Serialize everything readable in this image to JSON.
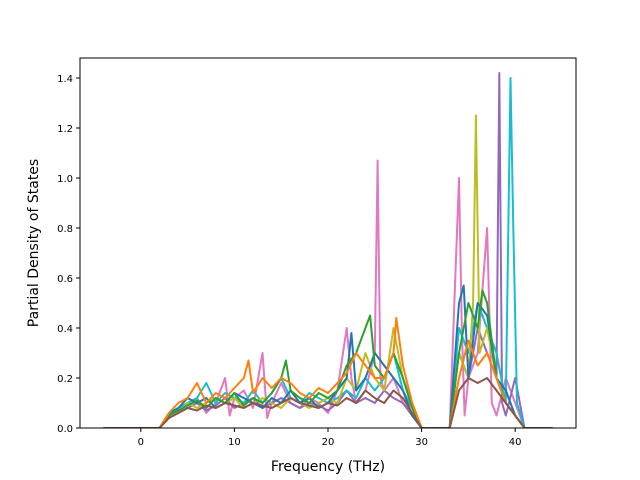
{
  "chart_data": {
    "type": "line",
    "title": "",
    "xlabel": "Frequency (THz)",
    "ylabel": "Partial Density of States",
    "xlim": [
      -6.5,
      46.5
    ],
    "ylim": [
      0,
      1.48
    ],
    "xticks": [
      0,
      10,
      20,
      30,
      40
    ],
    "yticks": [
      0.0,
      0.2,
      0.4,
      0.6,
      0.8,
      1.0,
      1.2,
      1.4
    ],
    "xtick_labels": [
      "0",
      "10",
      "20",
      "30",
      "40"
    ],
    "ytick_labels": [
      "0.0",
      "0.2",
      "0.4",
      "0.6",
      "0.8",
      "1.0",
      "1.2",
      "1.4"
    ],
    "grid": false,
    "legend": "none",
    "series": [
      {
        "color": "#e377c2",
        "x": [
          -4,
          2,
          3,
          4,
          5,
          6,
          7,
          8,
          9,
          9.5,
          10,
          11,
          12,
          13,
          13.5,
          14,
          15,
          16,
          17,
          18,
          19,
          20,
          21,
          22,
          22.5,
          23,
          24,
          25,
          25.3,
          25.6,
          26,
          27,
          28,
          29,
          30,
          33,
          34,
          34.3,
          34.6,
          35,
          36,
          37,
          37.5,
          38,
          39,
          40,
          41,
          44
        ],
        "y": [
          0,
          0,
          0.05,
          0.08,
          0.1,
          0.12,
          0.06,
          0.1,
          0.2,
          0.05,
          0.12,
          0.15,
          0.08,
          0.3,
          0.04,
          0.1,
          0.18,
          0.1,
          0.08,
          0.12,
          0.1,
          0.06,
          0.15,
          0.4,
          0.2,
          0.1,
          0.15,
          0.3,
          1.07,
          0.2,
          0.15,
          0.2,
          0.1,
          0.05,
          0,
          0,
          1.0,
          0.4,
          0.05,
          0.2,
          0.3,
          0.8,
          0.1,
          0.05,
          0.2,
          0.1,
          0,
          0
        ]
      },
      {
        "color": "#9467bd",
        "x": [
          -4,
          2,
          3,
          4,
          5,
          6,
          7,
          8,
          9,
          10,
          11,
          12,
          13,
          14,
          15,
          16,
          17,
          18,
          19,
          20,
          21,
          22,
          23,
          24,
          25,
          26,
          27,
          28,
          29,
          30,
          33,
          34,
          35,
          36,
          37,
          38,
          38.3,
          38.6,
          39,
          40,
          41,
          44
        ],
        "y": [
          0,
          0,
          0.04,
          0.06,
          0.08,
          0.1,
          0.07,
          0.09,
          0.12,
          0.08,
          0.1,
          0.12,
          0.08,
          0.1,
          0.12,
          0.1,
          0.08,
          0.1,
          0.09,
          0.07,
          0.1,
          0.15,
          0.1,
          0.12,
          0.1,
          0.15,
          0.12,
          0.1,
          0.05,
          0,
          0,
          0.3,
          0.2,
          0.4,
          0.3,
          0.2,
          1.42,
          0.1,
          0.05,
          0.2,
          0,
          0
        ]
      },
      {
        "color": "#17becf",
        "x": [
          -4,
          2,
          3,
          4,
          5,
          6,
          7,
          8,
          9,
          10,
          11,
          12,
          13,
          14,
          15,
          16,
          17,
          18,
          19,
          20,
          21,
          22,
          23,
          24,
          25,
          26,
          27,
          28,
          29,
          30,
          33,
          34,
          35,
          36,
          37,
          38,
          39,
          39.5,
          39.8,
          40.2,
          41,
          44
        ],
        "y": [
          0,
          0,
          0.05,
          0.08,
          0.1,
          0.12,
          0.18,
          0.1,
          0.14,
          0.12,
          0.1,
          0.15,
          0.1,
          0.14,
          0.2,
          0.12,
          0.1,
          0.14,
          0.12,
          0.1,
          0.12,
          0.15,
          0.12,
          0.2,
          0.15,
          0.2,
          0.3,
          0.15,
          0.08,
          0,
          0,
          0.4,
          0.3,
          0.5,
          0.4,
          0.3,
          0.1,
          1.4,
          0.8,
          0.1,
          0,
          0
        ]
      },
      {
        "color": "#bcbd22",
        "x": [
          -4,
          2,
          3,
          4,
          5,
          6,
          7,
          8,
          9,
          10,
          11,
          12,
          13,
          14,
          15,
          16,
          17,
          18,
          19,
          20,
          21,
          22,
          23,
          24,
          25,
          26,
          27,
          28,
          29,
          30,
          33,
          34,
          35,
          35.5,
          35.8,
          36.2,
          37,
          38,
          39,
          40,
          41,
          44
        ],
        "y": [
          0,
          0,
          0.04,
          0.06,
          0.1,
          0.08,
          0.1,
          0.12,
          0.1,
          0.12,
          0.08,
          0.1,
          0.12,
          0.1,
          0.08,
          0.12,
          0.1,
          0.08,
          0.1,
          0.12,
          0.1,
          0.2,
          0.15,
          0.3,
          0.2,
          0.15,
          0.4,
          0.2,
          0.1,
          0,
          0,
          0.3,
          0.2,
          0.5,
          1.25,
          0.3,
          0.4,
          0.2,
          0.1,
          0.05,
          0,
          0
        ]
      },
      {
        "color": "#1f77b4",
        "x": [
          -4,
          2,
          3,
          4,
          5,
          6,
          7,
          8,
          9,
          10,
          11,
          12,
          13,
          14,
          15,
          16,
          17,
          18,
          19,
          20,
          21,
          22,
          22.5,
          23,
          24,
          25,
          26,
          27,
          28,
          29,
          30,
          33,
          34,
          34.5,
          35,
          36,
          37,
          38,
          39,
          40,
          41,
          44
        ],
        "y": [
          0,
          0,
          0.06,
          0.08,
          0.12,
          0.1,
          0.12,
          0.08,
          0.1,
          0.14,
          0.12,
          0.1,
          0.08,
          0.12,
          0.1,
          0.15,
          0.1,
          0.12,
          0.08,
          0.1,
          0.15,
          0.2,
          0.38,
          0.15,
          0.2,
          0.3,
          0.25,
          0.2,
          0.15,
          0.05,
          0,
          0,
          0.5,
          0.57,
          0.2,
          0.5,
          0.45,
          0.2,
          0.15,
          0.05,
          0,
          0
        ]
      },
      {
        "color": "#2ca02c",
        "x": [
          -4,
          2,
          3,
          4,
          5,
          6,
          7,
          8,
          9,
          10,
          11,
          12,
          13,
          14,
          15,
          15.5,
          16,
          17,
          18,
          19,
          20,
          21,
          22,
          23,
          24,
          24.5,
          25,
          26,
          27,
          28,
          29,
          30,
          33,
          34,
          35,
          36,
          36.5,
          37,
          38,
          39,
          40,
          41,
          44
        ],
        "y": [
          0,
          0,
          0.05,
          0.07,
          0.09,
          0.11,
          0.08,
          0.12,
          0.1,
          0.14,
          0.09,
          0.12,
          0.1,
          0.14,
          0.2,
          0.27,
          0.15,
          0.12,
          0.1,
          0.14,
          0.12,
          0.15,
          0.25,
          0.3,
          0.4,
          0.45,
          0.25,
          0.2,
          0.3,
          0.2,
          0.08,
          0,
          0,
          0.3,
          0.5,
          0.4,
          0.55,
          0.5,
          0.2,
          0.1,
          0.05,
          0,
          0
        ]
      },
      {
        "color": "#ff7f0e",
        "x": [
          -4,
          2,
          3,
          4,
          5,
          6,
          7,
          8,
          9,
          10,
          11,
          11.5,
          12,
          13,
          14,
          15,
          16,
          17,
          18,
          19,
          20,
          21,
          22,
          23,
          24,
          25,
          26,
          27,
          27.3,
          28,
          29,
          30,
          33,
          34,
          35,
          36,
          37,
          38,
          39,
          40,
          41,
          44
        ],
        "y": [
          0,
          0,
          0.06,
          0.1,
          0.12,
          0.18,
          0.1,
          0.14,
          0.12,
          0.16,
          0.2,
          0.27,
          0.14,
          0.2,
          0.16,
          0.2,
          0.18,
          0.14,
          0.12,
          0.16,
          0.14,
          0.18,
          0.22,
          0.3,
          0.25,
          0.2,
          0.2,
          0.3,
          0.44,
          0.25,
          0.1,
          0,
          0,
          0.2,
          0.35,
          0.25,
          0.3,
          0.2,
          0.1,
          0.05,
          0,
          0
        ]
      },
      {
        "color": "#8c564b",
        "x": [
          -4,
          2,
          3,
          4,
          5,
          6,
          7,
          8,
          9,
          10,
          11,
          12,
          13,
          14,
          15,
          16,
          17,
          18,
          19,
          20,
          21,
          22,
          23,
          24,
          25,
          26,
          27,
          28,
          29,
          30,
          33,
          34,
          35,
          36,
          37,
          38,
          39,
          40,
          41,
          44
        ],
        "y": [
          0,
          0,
          0.04,
          0.06,
          0.08,
          0.07,
          0.09,
          0.08,
          0.1,
          0.09,
          0.08,
          0.1,
          0.09,
          0.08,
          0.1,
          0.12,
          0.1,
          0.09,
          0.08,
          0.1,
          0.09,
          0.12,
          0.1,
          0.15,
          0.12,
          0.1,
          0.15,
          0.12,
          0.06,
          0,
          0,
          0.15,
          0.2,
          0.18,
          0.2,
          0.15,
          0.1,
          0.05,
          0,
          0
        ]
      }
    ]
  }
}
